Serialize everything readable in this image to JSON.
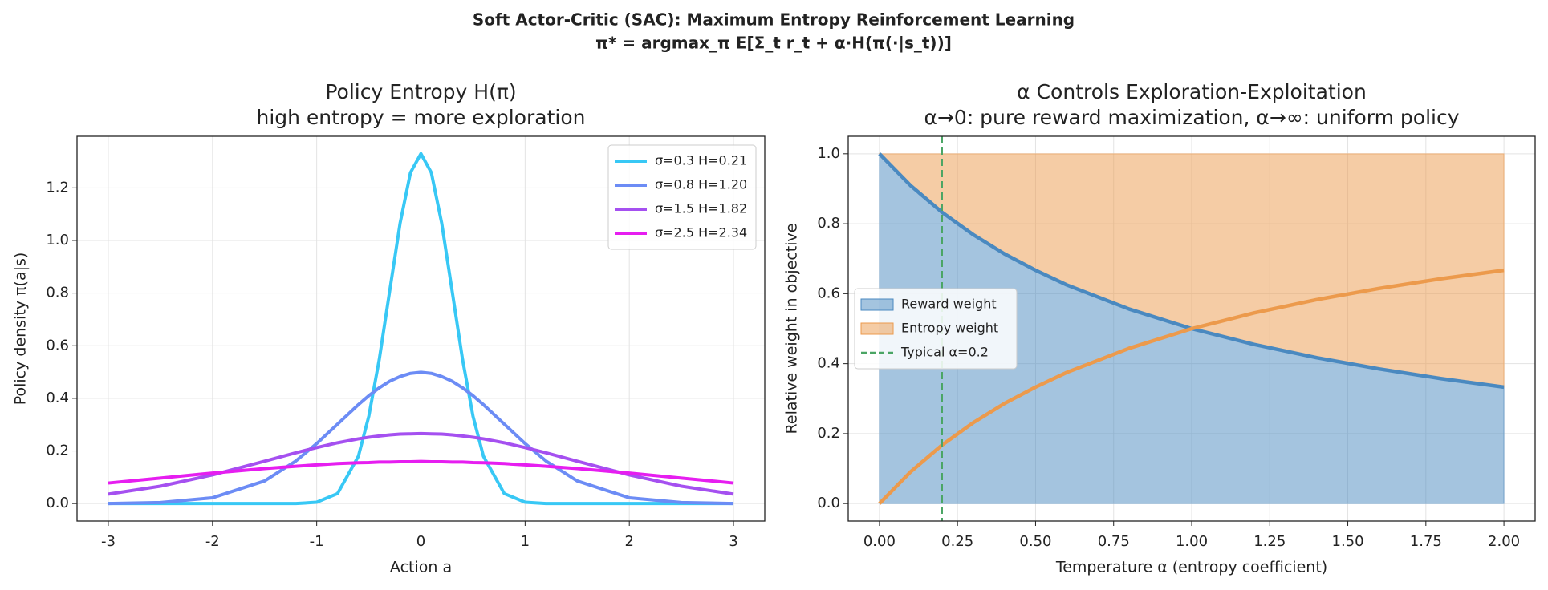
{
  "title": [
    "Soft Actor-Critic (SAC): Maximum Entropy Reinforcement Learning",
    "π* = argmax_π E[Σ_t r_t + α·H(π(·|s_t))]"
  ],
  "chart_data": [
    {
      "type": "line",
      "title": [
        "Policy Entropy H(π)",
        "high entropy = more exploration"
      ],
      "xlabel": "Action  a",
      "ylabel": "Policy density  π(a|s)",
      "x": [
        -3,
        -2.5,
        -2,
        -1.5,
        -1.2,
        -1,
        -0.8,
        -0.6,
        -0.5,
        -0.4,
        -0.3,
        -0.2,
        -0.1,
        0,
        0.1,
        0.2,
        0.3,
        0.4,
        0.5,
        0.6,
        0.8,
        1,
        1.2,
        1.5,
        2,
        2.5,
        3
      ],
      "series": [
        {
          "name": "σ=0.3  H=0.21",
          "color": "#38c8f5",
          "values": [
            0,
            0,
            0,
            0,
            0,
            0.005,
            0.038,
            0.18,
            0.332,
            0.547,
            0.807,
            1.065,
            1.258,
            1.33,
            1.258,
            1.065,
            0.807,
            0.547,
            0.332,
            0.18,
            0.038,
            0.005,
            0,
            0,
            0,
            0,
            0
          ]
        },
        {
          "name": "σ=0.8  H=1.20",
          "color": "#6c8cf5",
          "values": [
            0,
            0.004,
            0.022,
            0.086,
            0.162,
            0.228,
            0.302,
            0.376,
            0.41,
            0.44,
            0.465,
            0.483,
            0.495,
            0.499,
            0.495,
            0.483,
            0.465,
            0.44,
            0.41,
            0.376,
            0.302,
            0.228,
            0.162,
            0.086,
            0.022,
            0.004,
            0
          ]
        },
        {
          "name": "σ=1.5  H=1.82",
          "color": "#a550f0",
          "values": [
            0.036,
            0.066,
            0.109,
            0.161,
            0.193,
            0.213,
            0.231,
            0.246,
            0.252,
            0.257,
            0.261,
            0.264,
            0.265,
            0.266,
            0.265,
            0.264,
            0.261,
            0.257,
            0.252,
            0.246,
            0.231,
            0.213,
            0.193,
            0.161,
            0.109,
            0.066,
            0.036
          ]
        },
        {
          "name": "σ=2.5  H=2.34",
          "color": "#e61ef0",
          "values": [
            0.078,
            0.097,
            0.116,
            0.133,
            0.142,
            0.147,
            0.152,
            0.155,
            0.156,
            0.158,
            0.158,
            0.159,
            0.159,
            0.16,
            0.159,
            0.159,
            0.158,
            0.158,
            0.156,
            0.155,
            0.152,
            0.147,
            0.142,
            0.133,
            0.116,
            0.097,
            0.078
          ]
        }
      ],
      "xlim": [
        -3.3,
        3.3
      ],
      "ylim": [
        -0.0665,
        1.396
      ],
      "xticks": [
        -3,
        -2,
        -1,
        0,
        1,
        2,
        3
      ],
      "yticks": [
        {
          "value": 0,
          "label": "0.0"
        },
        {
          "value": 0.2,
          "label": "0.2"
        },
        {
          "value": 0.4,
          "label": "0.4"
        },
        {
          "value": 0.6,
          "label": "0.6"
        },
        {
          "value": 0.8,
          "label": "0.8"
        },
        {
          "value": 1.0,
          "label": "1.0"
        },
        {
          "value": 1.2,
          "label": "1.2"
        }
      ],
      "grid": true,
      "legend": "upper right"
    },
    {
      "type": "stacked-area",
      "title": [
        "α Controls Exploration-Exploitation",
        "α→0: pure reward maximization,  α→∞: uniform policy"
      ],
      "xlabel": "Temperature  α  (entropy coefficient)",
      "ylabel": "Relative weight in objective",
      "x": [
        0,
        0.1,
        0.2,
        0.3,
        0.4,
        0.5,
        0.6,
        0.8,
        1.0,
        1.2,
        1.4,
        1.6,
        1.8,
        2.0
      ],
      "series": [
        {
          "name": "Reward weight",
          "color": "#4a89c0",
          "values": [
            1,
            0.909,
            0.833,
            0.769,
            0.714,
            0.667,
            0.625,
            0.556,
            0.5,
            0.455,
            0.417,
            0.385,
            0.357,
            0.333
          ]
        },
        {
          "name": "Entropy weight",
          "color": "#ec9a4c",
          "values": [
            0,
            0.091,
            0.167,
            0.231,
            0.286,
            0.333,
            0.375,
            0.444,
            0.5,
            0.545,
            0.583,
            0.615,
            0.643,
            0.667
          ]
        }
      ],
      "vline": {
        "x": 0.2,
        "name": "Typical α=0.2",
        "color": "#4aa564"
      },
      "xlim": [
        -0.1,
        2.1
      ],
      "ylim": [
        -0.05,
        1.05
      ],
      "xticks": [
        {
          "value": 0,
          "label": "0.00"
        },
        {
          "value": 0.25,
          "label": "0.25"
        },
        {
          "value": 0.5,
          "label": "0.50"
        },
        {
          "value": 0.75,
          "label": "0.75"
        },
        {
          "value": 1.0,
          "label": "1.00"
        },
        {
          "value": 1.25,
          "label": "1.25"
        },
        {
          "value": 1.5,
          "label": "1.50"
        },
        {
          "value": 1.75,
          "label": "1.75"
        },
        {
          "value": 2.0,
          "label": "2.00"
        }
      ],
      "yticks": [
        {
          "value": 0,
          "label": "0.0"
        },
        {
          "value": 0.2,
          "label": "0.2"
        },
        {
          "value": 0.4,
          "label": "0.4"
        },
        {
          "value": 0.6,
          "label": "0.6"
        },
        {
          "value": 0.8,
          "label": "0.8"
        },
        {
          "value": 1.0,
          "label": "1.0"
        }
      ],
      "grid": true,
      "legend": "center left"
    }
  ]
}
